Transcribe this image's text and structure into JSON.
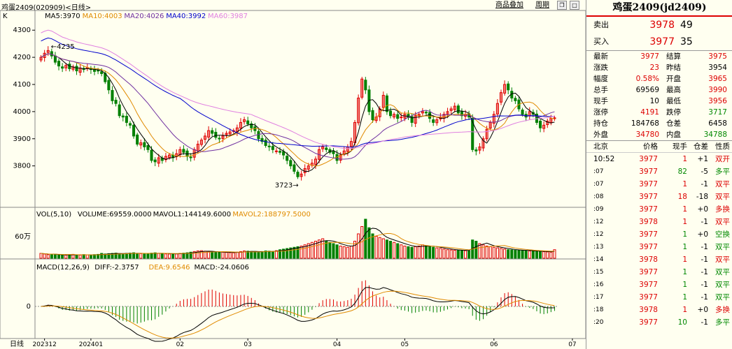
{
  "header": {
    "title": "鸡蛋2409(020909)<日线>",
    "btn_overlay": "商品叠加",
    "btn_period": "周期",
    "window_icons": [
      "restore-icon",
      "minimize-icon",
      "maximize-icon",
      "close-icon"
    ]
  },
  "kline": {
    "legend_k": "K",
    "ma": [
      {
        "label": "MA5:3970",
        "color": "#000000"
      },
      {
        "label": "MA10:4003",
        "color": "#e08a00"
      },
      {
        "label": "MA20:4026",
        "color": "#7030a0"
      },
      {
        "label": "MA40:3992",
        "color": "#0000cc"
      },
      {
        "label": "MA60:3987",
        "color": "#e080e0"
      }
    ],
    "y_ticks": [
      "4300",
      "4200",
      "4100",
      "4000",
      "3900",
      "3800"
    ],
    "y_vals": [
      4300,
      4200,
      4100,
      4000,
      3900,
      3800
    ],
    "ylim": [
      3650,
      4370
    ],
    "high_label": "4235",
    "low_label": "3723"
  },
  "volume": {
    "legend": [
      "VOL(5,10)",
      "VOLUME:69559.0000",
      "MAVOL1:144149.6000",
      "MAVOL2:188797.5000"
    ],
    "legend_colors": [
      "#000",
      "#000",
      "#000",
      "#e08a00"
    ],
    "y_tick": "60万"
  },
  "macd": {
    "legend": [
      "MACD(12,26,9)",
      "DIFF:-2.3757",
      "DEA:9.6546",
      "MACD:-24.0606"
    ],
    "legend_colors": [
      "#000",
      "#000",
      "#e08a00",
      "#000"
    ],
    "y_tick": "0"
  },
  "xaxis": {
    "period": "日线",
    "labels": [
      "202312",
      "202401",
      "02",
      "03",
      "04",
      "05",
      "06",
      "07"
    ],
    "label_idx": [
      1,
      14,
      39,
      58,
      83,
      102,
      127,
      149
    ]
  },
  "chart_data": {
    "type": "candlestick",
    "closes": [
      4200,
      4215,
      4225,
      4205,
      4182,
      4168,
      4160,
      4170,
      4158,
      4165,
      4150,
      4160,
      4155,
      4162,
      4155,
      4148,
      4150,
      4140,
      4110,
      4080,
      4040,
      4030,
      3985,
      3980,
      3960,
      3950,
      3910,
      3880,
      3885,
      3870,
      3860,
      3820,
      3815,
      3830,
      3820,
      3835,
      3840,
      3830,
      3845,
      3860,
      3850,
      3835,
      3830,
      3860,
      3880,
      3895,
      3910,
      3930,
      3920,
      3905,
      3900,
      3910,
      3920,
      3925,
      3930,
      3940,
      3960,
      3970,
      3955,
      3940,
      3930,
      3900,
      3890,
      3875,
      3870,
      3860,
      3855,
      3850,
      3840,
      3820,
      3800,
      3780,
      3760,
      3770,
      3790,
      3800,
      3810,
      3825,
      3860,
      3870,
      3860,
      3850,
      3845,
      3820,
      3840,
      3855,
      3870,
      3890,
      3960,
      4050,
      4120,
      4080,
      4000,
      3970,
      3980,
      4010,
      4060,
      4000,
      3985,
      3990,
      3975,
      3980,
      3990,
      3978,
      3960,
      3985,
      3990,
      4000,
      3995,
      3975,
      3960,
      3970,
      3980,
      3990,
      4000,
      4010,
      4020,
      3995,
      3985,
      3990,
      3980,
      3860,
      3855,
      3870,
      3900,
      3935,
      3960,
      3990,
      4030,
      4070,
      4100,
      4080,
      4050,
      4040,
      4010,
      3990,
      3980,
      4000,
      3990,
      3960,
      3940,
      3950,
      3965,
      3975,
      3977
    ],
    "volume": [
      40,
      35,
      30,
      32,
      30,
      28,
      25,
      26,
      30,
      32,
      28,
      26,
      30,
      28,
      26,
      30,
      32,
      40,
      35,
      38,
      40,
      42,
      38,
      36,
      40,
      42,
      45,
      40,
      38,
      36,
      40,
      42,
      45,
      40,
      38,
      36,
      35,
      38,
      36,
      40,
      42,
      45,
      50,
      55,
      60,
      62,
      58,
      55,
      50,
      48,
      52,
      50,
      48,
      46,
      45,
      50,
      55,
      60,
      58,
      56,
      52,
      50,
      55,
      60,
      58,
      56,
      62,
      70,
      75,
      80,
      85,
      90,
      95,
      100,
      110,
      120,
      130,
      140,
      150,
      160,
      140,
      130,
      120,
      110,
      100,
      95,
      90,
      100,
      140,
      200,
      260,
      320,
      250,
      200,
      180,
      170,
      160,
      150,
      140,
      130,
      120,
      110,
      100,
      95,
      90,
      95,
      100,
      110,
      100,
      95,
      90,
      85,
      80,
      75,
      70,
      68,
      66,
      65,
      64,
      62,
      60,
      150,
      140,
      120,
      110,
      100,
      95,
      90,
      85,
      80,
      75,
      70,
      68,
      66,
      65,
      64,
      62,
      60,
      58,
      56,
      55,
      54,
      52,
      50,
      70
    ]
  },
  "quote": {
    "title": "鸡蛋2409(jd2409)",
    "ask": {
      "label": "卖出",
      "price": "3978",
      "vol": "49"
    },
    "bid": {
      "label": "买入",
      "price": "3977",
      "vol": "35"
    },
    "stats": [
      [
        "最新",
        "3977",
        "red",
        "结算",
        "3975",
        "red"
      ],
      [
        "涨跌",
        "23",
        "red",
        "昨结",
        "3954",
        "blk"
      ],
      [
        "幅度",
        "0.58%",
        "red",
        "开盘",
        "3965",
        "red"
      ],
      [
        "总手",
        "69569",
        "blk",
        "最高",
        "3990",
        "red"
      ],
      [
        "现手",
        "10",
        "blk",
        "最低",
        "3956",
        "red"
      ],
      [
        "涨停",
        "4191",
        "red",
        "跌停",
        "3717",
        "green"
      ],
      [
        "持仓",
        "184768",
        "blk",
        "仓差",
        "6458",
        "blk"
      ],
      [
        "外盘",
        "34780",
        "red",
        "内盘",
        "34788",
        "green"
      ]
    ],
    "tick_header": [
      "北京",
      "价格",
      "现手",
      "仓差",
      "性质"
    ],
    "ticks": [
      [
        "10:52",
        "3977",
        "1",
        "+1",
        "双开",
        "red"
      ],
      [
        ":07",
        "3977",
        "82",
        "-5",
        "多平",
        "green"
      ],
      [
        ":07",
        "3977",
        "1",
        "-1",
        "双平",
        "red"
      ],
      [
        ":08",
        "3977",
        "18",
        "-18",
        "双平",
        "red"
      ],
      [
        ":09",
        "3977",
        "1",
        "+0",
        "多换",
        "red"
      ],
      [
        ":12",
        "3978",
        "1",
        "-1",
        "双平",
        "red"
      ],
      [
        ":12",
        "3977",
        "1",
        "+0",
        "空换",
        "green"
      ],
      [
        ":13",
        "3977",
        "1",
        "-1",
        "双平",
        "green"
      ],
      [
        ":14",
        "3978",
        "1",
        "-1",
        "双平",
        "red"
      ],
      [
        ":15",
        "3977",
        "1",
        "-1",
        "双平",
        "green"
      ],
      [
        ":16",
        "3977",
        "1",
        "-1",
        "双平",
        "green"
      ],
      [
        ":17",
        "3977",
        "1",
        "-1",
        "双平",
        "green"
      ],
      [
        ":18",
        "3978",
        "1",
        "+0",
        "多换",
        "red"
      ],
      [
        ":20",
        "3977",
        "10",
        "-1",
        "多平",
        "green"
      ]
    ]
  }
}
